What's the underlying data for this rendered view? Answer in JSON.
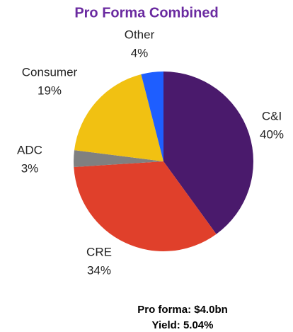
{
  "chart_data": {
    "type": "pie",
    "title": "Pro Forma Combined",
    "categories": [
      "C&I",
      "CRE",
      "ADC",
      "Consumer",
      "Other"
    ],
    "values": [
      40,
      34,
      3,
      19,
      4
    ],
    "value_labels": [
      "40%",
      "34%",
      "3%",
      "19%",
      "4%"
    ],
    "colors": [
      "#4a1a6c",
      "#e0402b",
      "#808080",
      "#f1c112",
      "#1e5eff"
    ],
    "annotations": [
      "Pro forma: $4.0bn",
      "Yield: 5.04%"
    ]
  }
}
